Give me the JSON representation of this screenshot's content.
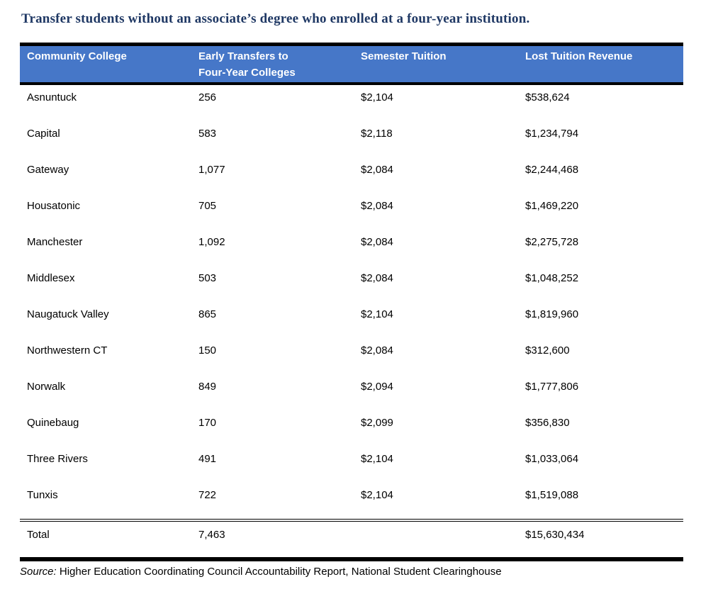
{
  "title": "Transfer students without an associate’s degree who enrolled at a four-year institution.",
  "table": {
    "headers": [
      "Community College",
      "Early Transfers to Four-Year Colleges",
      "Semester Tuition",
      "Lost Tuition Revenue"
    ],
    "rows": [
      {
        "college": "Asnuntuck",
        "transfers": "256",
        "tuition": "$2,104",
        "revenue": "$538,624"
      },
      {
        "college": "Capital",
        "transfers": "583",
        "tuition": "$2,118",
        "revenue": "$1,234,794"
      },
      {
        "college": "Gateway",
        "transfers": "1,077",
        "tuition": "$2,084",
        "revenue": "$2,244,468"
      },
      {
        "college": "Housatonic",
        "transfers": "705",
        "tuition": "$2,084",
        "revenue": "$1,469,220"
      },
      {
        "college": "Manchester",
        "transfers": "1,092",
        "tuition": "$2,084",
        "revenue": "$2,275,728"
      },
      {
        "college": "Middlesex",
        "transfers": "503",
        "tuition": "$2,084",
        "revenue": "$1,048,252"
      },
      {
        "college": "Naugatuck Valley",
        "transfers": "865",
        "tuition": "$2,104",
        "revenue": "$1,819,960"
      },
      {
        "college": "Northwestern CT",
        "transfers": "150",
        "tuition": "$2,084",
        "revenue": "$312,600"
      },
      {
        "college": "Norwalk",
        "transfers": "849",
        "tuition": "$2,094",
        "revenue": "$1,777,806"
      },
      {
        "college": "Quinebaug",
        "transfers": "170",
        "tuition": "$2,099",
        "revenue": "$356,830"
      },
      {
        "college": "Three Rivers",
        "transfers": "491",
        "tuition": "$2,104",
        "revenue": "$1,033,064"
      },
      {
        "college": "Tunxis",
        "transfers": "722",
        "tuition": "$2,104",
        "revenue": "$1,519,088"
      }
    ],
    "total": {
      "label": "Total",
      "transfers": "7,463",
      "tuition": "",
      "revenue": "$15,630,434"
    }
  },
  "source": {
    "prefix": "Source:",
    "text": " Higher Education Coordinating Council Accountability Report, National Student Clearinghouse"
  },
  "colors": {
    "header_bg": "#4677C8",
    "header_text": "#FFFFFF",
    "title_text": "#1F3864",
    "rule": "#000000"
  }
}
